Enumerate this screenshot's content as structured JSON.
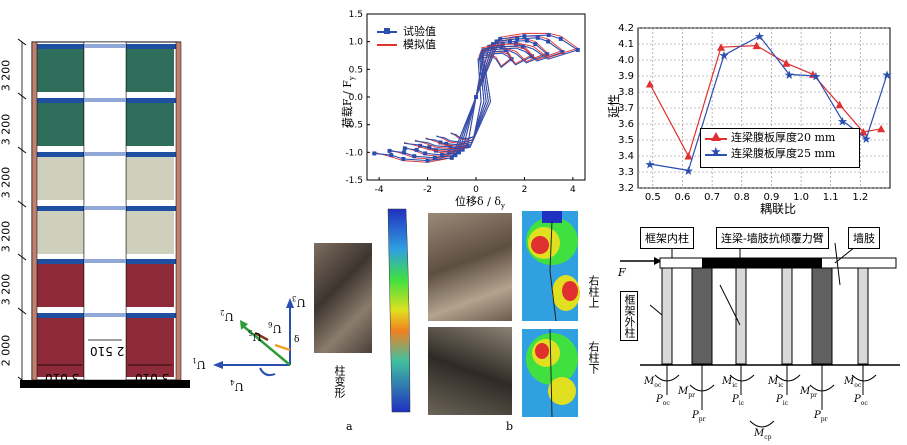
{
  "frame_elevation": {
    "story_heights": [
      "3 200",
      "3 200",
      "3 200",
      "3 200",
      "3 200",
      "2 000"
    ],
    "bay_widths": [
      "3 010",
      "2 510",
      "3 010"
    ]
  },
  "dof_diagram": {
    "labels": [
      "U",
      "U",
      "U",
      "U",
      "U",
      "U",
      "δ"
    ],
    "colors": {
      "green": "#2e9a3a",
      "blue": "#2b4fb0",
      "orange": "#f0a020",
      "brown": "#7a3a1a"
    }
  },
  "hysteresis": {
    "x_label": "位移δ / δ",
    "x_label_sub": "y",
    "y_label": "荷载F / F",
    "y_label_sub": "y",
    "legend": [
      "试验值",
      "模拟值"
    ]
  },
  "ductility_chart": {
    "x_label": "耦联比",
    "y_label": "延性",
    "legend": [
      "连梁腹板厚度20 mm",
      "连梁腹板厚度25 mm"
    ]
  },
  "deformation_panels": {
    "a_caption": "柱变形",
    "label_a": "a",
    "label_b": "b",
    "right_top": "右柱上",
    "right_bottom": "右柱下"
  },
  "mechanism": {
    "inner_column": "框架内柱",
    "coupling_moment": "连梁-墙肢抗倾覆力臂",
    "wall_pier": "墙肢",
    "outer_column": "框架外柱",
    "force": "F",
    "moment_labels": [
      "M",
      "P",
      "M",
      "P",
      "M",
      "P",
      "M",
      "P",
      "M",
      "P",
      "M",
      "P",
      "M"
    ],
    "moment_subs": [
      "oc",
      "oc",
      "pr",
      "pr",
      "ic",
      "ic",
      "ic",
      "ic",
      "pr",
      "pr",
      "oc",
      "oc",
      "cp"
    ]
  },
  "chart_data": [
    {
      "type": "line",
      "x_range": [
        -4.5,
        4.5
      ],
      "y_range": [
        -1.5,
        1.5
      ],
      "x_ticks": [
        -4,
        -2,
        0,
        2,
        4
      ],
      "y_ticks": [
        -1.5,
        -1.0,
        -0.5,
        0,
        0.5,
        1.0,
        1.5
      ],
      "series": [
        {
          "name": "试验值",
          "marker": "square",
          "color": "#2b4fb0",
          "envelope_x": [
            -4.2,
            -3.5,
            -3,
            -2,
            -1,
            0,
            1,
            2,
            3,
            3.5,
            4.2
          ],
          "envelope_y": [
            -1.02,
            -1.05,
            -1.12,
            -1.15,
            -1.1,
            0,
            1.05,
            1.1,
            1.12,
            1.05,
            0.85
          ]
        },
        {
          "name": "模拟值",
          "color": "#e03030",
          "envelope_x": [
            -4.2,
            -3.5,
            -3,
            -2,
            -1,
            0,
            1,
            2,
            3,
            3.5,
            4.2
          ],
          "envelope_y": [
            -1.0,
            -1.08,
            -1.15,
            -1.18,
            -1.1,
            0,
            1.08,
            1.15,
            1.15,
            1.1,
            0.88
          ]
        }
      ]
    },
    {
      "type": "line",
      "x_range": [
        0.45,
        1.3
      ],
      "y_range": [
        3.2,
        4.2
      ],
      "x_ticks": [
        0.5,
        0.6,
        0.7,
        0.8,
        0.9,
        1.0,
        1.1,
        1.2
      ],
      "y_ticks": [
        3.2,
        3.3,
        3.4,
        3.5,
        3.6,
        3.7,
        3.8,
        3.9,
        4.0,
        4.1,
        4.2
      ],
      "grid": true,
      "series": [
        {
          "name": "连梁腹板厚度20 mm",
          "marker": "triangle",
          "color": "#e03030",
          "x": [
            0.49,
            0.62,
            0.73,
            0.85,
            0.95,
            1.04,
            1.13,
            1.21,
            1.27
          ],
          "y": [
            3.85,
            3.4,
            4.08,
            4.09,
            3.98,
            3.91,
            3.72,
            3.55,
            3.57
          ]
        },
        {
          "name": "连梁腹板厚度25 mm",
          "marker": "star",
          "color": "#2b4fb0",
          "x": [
            0.49,
            0.62,
            0.74,
            0.86,
            0.96,
            1.05,
            1.14,
            1.22,
            1.29
          ],
          "y": [
            3.35,
            3.31,
            4.03,
            4.15,
            3.91,
            3.9,
            3.62,
            3.51,
            3.91
          ]
        }
      ]
    }
  ]
}
